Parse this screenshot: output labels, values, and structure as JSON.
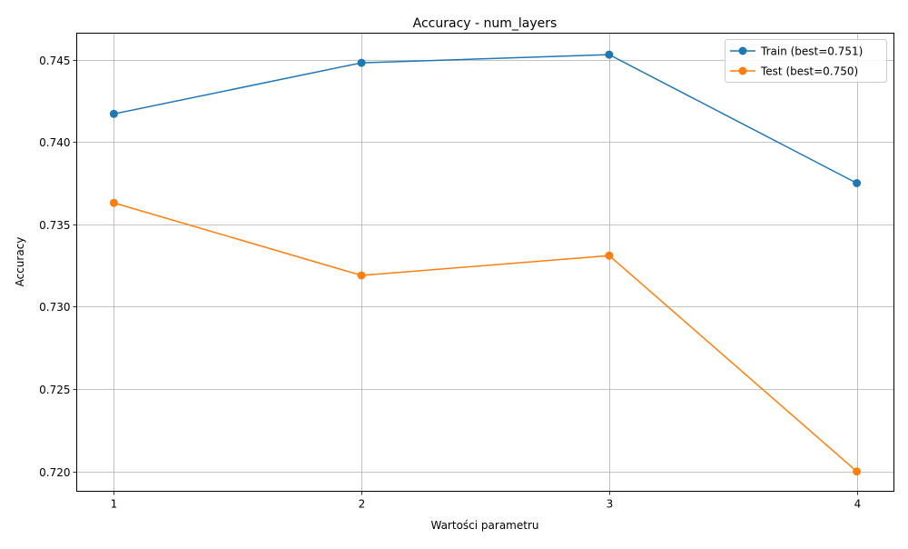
{
  "chart_data": {
    "type": "line",
    "title": "Accuracy - num_layers",
    "xlabel": "Wartości parametru",
    "ylabel": "Accuracy",
    "x": [
      1,
      2,
      3,
      4
    ],
    "xticks": [
      "1",
      "2",
      "3",
      "4"
    ],
    "yticks": [
      "0.720",
      "0.725",
      "0.730",
      "0.735",
      "0.740",
      "0.745"
    ],
    "ytick_values": [
      0.72,
      0.725,
      0.73,
      0.735,
      0.74,
      0.745
    ],
    "xlim": [
      0.85,
      4.15
    ],
    "ylim": [
      0.7188,
      0.7466
    ],
    "grid": true,
    "legend_position": "top-right",
    "series": [
      {
        "name": "Train (best=0.751)",
        "color": "#1f77b4",
        "marker": "circle",
        "values": [
          0.7417,
          0.7448,
          0.7453,
          0.7375
        ]
      },
      {
        "name": "Test (best=0.750)",
        "color": "#ff7f0e",
        "marker": "circle",
        "values": [
          0.7363,
          0.7319,
          0.7331,
          0.72
        ]
      }
    ]
  }
}
